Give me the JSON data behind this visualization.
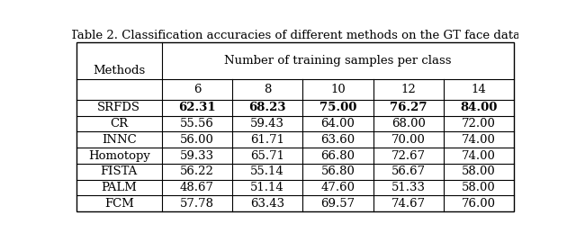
{
  "title": "Table 2. Classification accuracies of different methods on the GT face data",
  "col_header_top": "Number of training samples per class",
  "col_header_sub": [
    "6",
    "8",
    "10",
    "12",
    "14"
  ],
  "row_header": "Methods",
  "methods": [
    "SRFDS",
    "CR",
    "INNC",
    "Homotopy",
    "FISTA",
    "PALM",
    "FCM"
  ],
  "data": [
    [
      "62.31",
      "68.23",
      "75.00",
      "76.27",
      "84.00"
    ],
    [
      "55.56",
      "59.43",
      "64.00",
      "68.00",
      "72.00"
    ],
    [
      "56.00",
      "61.71",
      "63.60",
      "70.00",
      "74.00"
    ],
    [
      "59.33",
      "65.71",
      "66.80",
      "72.67",
      "74.00"
    ],
    [
      "56.22",
      "55.14",
      "56.80",
      "56.67",
      "58.00"
    ],
    [
      "48.67",
      "51.14",
      "47.60",
      "51.33",
      "58.00"
    ],
    [
      "57.78",
      "63.43",
      "69.57",
      "74.67",
      "76.00"
    ]
  ],
  "bold_row": 0,
  "bg_color": "#ffffff",
  "line_color": "#000000",
  "font_size": 9.5,
  "title_font_size": 9.5
}
